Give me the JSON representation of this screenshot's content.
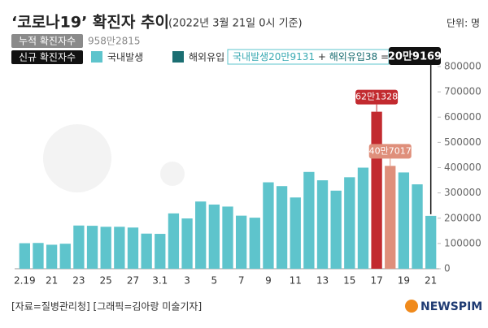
{
  "title": "‘코로나19’ 확진자 추이",
  "subtitle": "(2022년 3월 21일 0시 기준)",
  "unit": "단위: 명",
  "cumulative": {
    "label": "누적 확진자수",
    "value_text": "958만2815"
  },
  "new_cases_label": "신규 확진자수",
  "annotation": {
    "domestic": "국내발생20만9131",
    "plus": "+",
    "imported": "해외유입38",
    "equals": "=",
    "total": "20만9169"
  },
  "footer": "[자료=질병관리청] [그래픽=김아랑 미술기자]",
  "logo": "NEWSPIM",
  "chart_data": {
    "type": "bar",
    "stacked": true,
    "categories": [
      "2.19",
      null,
      "21",
      null,
      "23",
      null,
      "25",
      null,
      "27",
      null,
      "3.1",
      null,
      "3",
      null,
      "5",
      null,
      "7",
      null,
      "9",
      null,
      "11",
      null,
      "13",
      null,
      "15",
      null,
      "17",
      null,
      "19",
      null,
      "21"
    ],
    "series": [
      {
        "name": "국내발생",
        "color": "#5ec4cc",
        "values": [
          101000,
          102000,
          95000,
          99000,
          171000,
          170000,
          166000,
          166000,
          163000,
          139000,
          138000,
          219000,
          199000,
          266000,
          254000,
          246000,
          210000,
          202000,
          342000,
          327000,
          282000,
          383000,
          350000,
          309000,
          362000,
          400000,
          621328,
          407017,
          381000,
          334000,
          209131
        ],
        "value_labels": [
          null,
          null,
          null,
          null,
          null,
          null,
          null,
          null,
          null,
          null,
          null,
          null,
          null,
          null,
          null,
          null,
          null,
          null,
          null,
          null,
          null,
          null,
          null,
          null,
          null,
          null,
          "62만1328",
          "40만7017",
          null,
          null,
          null
        ],
        "colors": [
          "#5ec4cc",
          "#5ec4cc",
          "#5ec4cc",
          "#5ec4cc",
          "#5ec4cc",
          "#5ec4cc",
          "#5ec4cc",
          "#5ec4cc",
          "#5ec4cc",
          "#5ec4cc",
          "#5ec4cc",
          "#5ec4cc",
          "#5ec4cc",
          "#5ec4cc",
          "#5ec4cc",
          "#5ec4cc",
          "#5ec4cc",
          "#5ec4cc",
          "#5ec4cc",
          "#5ec4cc",
          "#5ec4cc",
          "#5ec4cc",
          "#5ec4cc",
          "#5ec4cc",
          "#5ec4cc",
          "#5ec4cc",
          "#c22a2f",
          "#df8f7b",
          "#5ec4cc",
          "#5ec4cc",
          "#5ec4cc"
        ]
      },
      {
        "name": "해외유입",
        "color": "#1b6e72",
        "values": [
          null,
          null,
          null,
          null,
          null,
          null,
          null,
          null,
          null,
          null,
          null,
          null,
          null,
          null,
          null,
          null,
          null,
          null,
          null,
          null,
          null,
          null,
          null,
          null,
          null,
          null,
          null,
          null,
          null,
          null,
          38
        ]
      }
    ],
    "ylim": [
      0,
      800000
    ],
    "yticks": [
      0,
      100000,
      200000,
      300000,
      400000,
      500000,
      600000,
      700000,
      800000
    ]
  }
}
